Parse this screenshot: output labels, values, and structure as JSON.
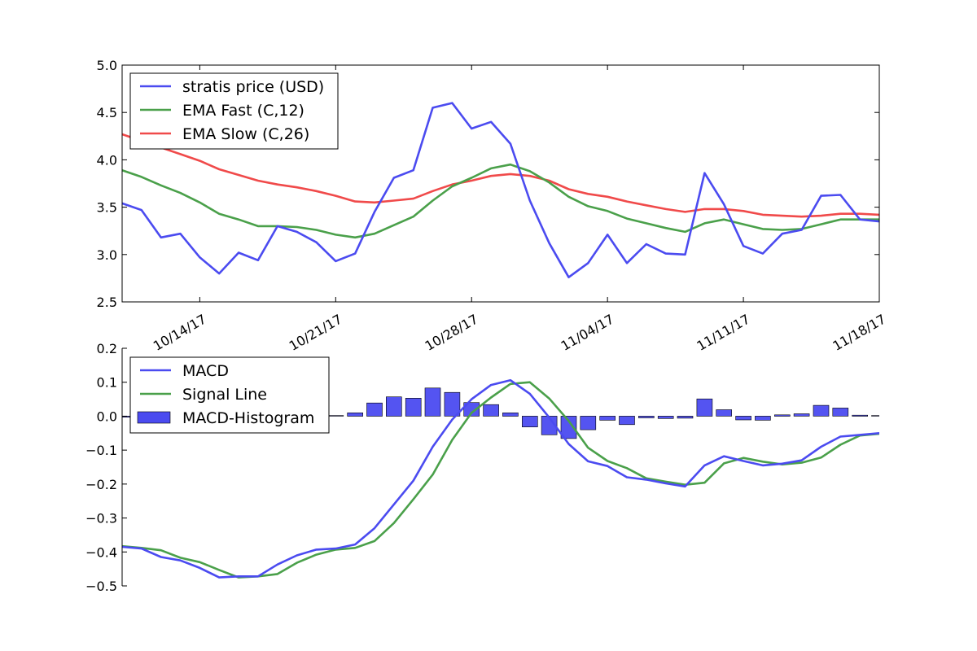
{
  "colors": {
    "blue": "#4B4BF0",
    "green": "#4AA04A",
    "red": "#F04A4A",
    "bar_fill": "#4B4BF0"
  },
  "chart_data": [
    {
      "type": "line",
      "ylim": [
        2.5,
        5.0
      ],
      "yticks": [
        "2.5",
        "3.0",
        "3.5",
        "4.0",
        "4.5",
        "5.0"
      ],
      "x_range": [
        "2017-10-10",
        "2017-11-18"
      ],
      "xticks": [
        {
          "date": "2017-10-14",
          "label": "10/14/17"
        },
        {
          "date": "2017-10-21",
          "label": "10/21/17"
        },
        {
          "date": "2017-10-28",
          "label": "10/28/17"
        },
        {
          "date": "2017-11-04",
          "label": "11/04/17"
        },
        {
          "date": "2017-11-11",
          "label": "11/11/17"
        },
        {
          "date": "2017-11-18",
          "label": "11/18/17"
        }
      ],
      "legend_position": "top-left",
      "x": [
        "2017-10-10",
        "2017-10-11",
        "2017-10-12",
        "2017-10-13",
        "2017-10-14",
        "2017-10-15",
        "2017-10-16",
        "2017-10-17",
        "2017-10-18",
        "2017-10-19",
        "2017-10-20",
        "2017-10-21",
        "2017-10-22",
        "2017-10-23",
        "2017-10-24",
        "2017-10-25",
        "2017-10-26",
        "2017-10-27",
        "2017-10-28",
        "2017-10-29",
        "2017-10-30",
        "2017-10-31",
        "2017-11-01",
        "2017-11-02",
        "2017-11-03",
        "2017-11-04",
        "2017-11-05",
        "2017-11-06",
        "2017-11-07",
        "2017-11-08",
        "2017-11-09",
        "2017-11-10",
        "2017-11-11",
        "2017-11-12",
        "2017-11-13",
        "2017-11-14",
        "2017-11-15",
        "2017-11-16",
        "2017-11-17",
        "2017-11-18"
      ],
      "series": [
        {
          "name": "stratis price (USD)",
          "color": "#4B4BF0",
          "values": [
            3.54,
            3.47,
            3.18,
            3.22,
            2.97,
            2.8,
            3.02,
            2.94,
            3.3,
            3.24,
            3.13,
            2.93,
            3.01,
            3.45,
            3.81,
            3.89,
            4.55,
            4.6,
            4.33,
            4.4,
            4.17,
            3.57,
            3.12,
            2.76,
            2.91,
            3.21,
            2.91,
            3.11,
            3.01,
            3.0,
            3.86,
            3.53,
            3.09,
            3.01,
            3.22,
            3.26,
            3.62,
            3.63,
            3.37,
            3.35
          ]
        },
        {
          "name": "EMA Fast (C,12)",
          "color": "#4AA04A",
          "values": [
            3.89,
            3.82,
            3.73,
            3.65,
            3.55,
            3.43,
            3.37,
            3.3,
            3.3,
            3.29,
            3.26,
            3.21,
            3.18,
            3.22,
            3.31,
            3.4,
            3.57,
            3.72,
            3.81,
            3.91,
            3.95,
            3.88,
            3.76,
            3.61,
            3.51,
            3.46,
            3.38,
            3.33,
            3.28,
            3.24,
            3.33,
            3.37,
            3.32,
            3.27,
            3.26,
            3.27,
            3.32,
            3.37,
            3.37,
            3.37
          ]
        },
        {
          "name": "EMA Slow (C,26)",
          "color": "#F04A4A",
          "values": [
            4.27,
            4.2,
            4.13,
            4.06,
            3.99,
            3.9,
            3.84,
            3.78,
            3.74,
            3.71,
            3.67,
            3.62,
            3.56,
            3.55,
            3.57,
            3.59,
            3.67,
            3.74,
            3.78,
            3.83,
            3.85,
            3.83,
            3.78,
            3.69,
            3.64,
            3.61,
            3.56,
            3.52,
            3.48,
            3.45,
            3.48,
            3.48,
            3.46,
            3.42,
            3.41,
            3.4,
            3.41,
            3.43,
            3.43,
            3.42
          ]
        }
      ]
    },
    {
      "type": "line",
      "ylim": [
        -0.5,
        0.2
      ],
      "yticks": [
        "−0.5",
        "−0.4",
        "−0.3",
        "−0.2",
        "−0.1",
        "0.0",
        "0.1",
        "0.2"
      ],
      "x_range": [
        "2017-10-10",
        "2017-11-18"
      ],
      "legend_position": "top-left",
      "x": [
        "2017-10-10",
        "2017-10-11",
        "2017-10-12",
        "2017-10-13",
        "2017-10-14",
        "2017-10-15",
        "2017-10-16",
        "2017-10-17",
        "2017-10-18",
        "2017-10-19",
        "2017-10-20",
        "2017-10-21",
        "2017-10-22",
        "2017-10-23",
        "2017-10-24",
        "2017-10-25",
        "2017-10-26",
        "2017-10-27",
        "2017-10-28",
        "2017-10-29",
        "2017-10-30",
        "2017-10-31",
        "2017-11-01",
        "2017-11-02",
        "2017-11-03",
        "2017-11-04",
        "2017-11-05",
        "2017-11-06",
        "2017-11-07",
        "2017-11-08",
        "2017-11-09",
        "2017-11-10",
        "2017-11-11",
        "2017-11-12",
        "2017-11-13",
        "2017-11-14",
        "2017-11-15",
        "2017-11-16",
        "2017-11-17",
        "2017-11-18"
      ],
      "series": [
        {
          "name": "MACD",
          "kind": "line",
          "color": "#4B4BF0",
          "values": [
            -0.385,
            -0.39,
            -0.415,
            -0.425,
            -0.447,
            -0.475,
            -0.472,
            -0.472,
            -0.437,
            -0.41,
            -0.393,
            -0.39,
            -0.378,
            -0.33,
            -0.26,
            -0.19,
            -0.09,
            -0.01,
            0.05,
            0.092,
            0.106,
            0.066,
            -0.004,
            -0.082,
            -0.133,
            -0.147,
            -0.18,
            -0.187,
            -0.198,
            -0.207,
            -0.145,
            -0.118,
            -0.132,
            -0.145,
            -0.14,
            -0.13,
            -0.09,
            -0.06,
            -0.055,
            -0.05
          ]
        },
        {
          "name": "Signal Line",
          "kind": "line",
          "color": "#4AA04A",
          "values": [
            -0.383,
            -0.388,
            -0.395,
            -0.417,
            -0.43,
            -0.453,
            -0.475,
            -0.472,
            -0.465,
            -0.432,
            -0.408,
            -0.393,
            -0.388,
            -0.368,
            -0.315,
            -0.245,
            -0.172,
            -0.07,
            0.01,
            0.055,
            0.095,
            0.1,
            0.052,
            -0.014,
            -0.093,
            -0.132,
            -0.153,
            -0.183,
            -0.193,
            -0.202,
            -0.196,
            -0.139,
            -0.123,
            -0.134,
            -0.142,
            -0.137,
            -0.122,
            -0.084,
            -0.057,
            -0.052
          ]
        },
        {
          "name": "MACD-Histogram",
          "kind": "bar",
          "color": "#4B4BF0",
          "values": [
            -0.003,
            -0.002,
            -0.002,
            -0.001,
            -0.001,
            -0.001,
            -0.001,
            0.0,
            0.0,
            0.0,
            0.0,
            0.0,
            0.01,
            0.039,
            0.057,
            0.053,
            0.083,
            0.07,
            0.04,
            0.034,
            0.01,
            -0.032,
            -0.055,
            -0.066,
            -0.04,
            -0.012,
            -0.025,
            -0.005,
            -0.007,
            -0.006,
            0.051,
            0.019,
            -0.011,
            -0.012,
            0.004,
            0.007,
            0.032,
            0.024,
            0.003,
            0.002
          ]
        }
      ]
    }
  ]
}
